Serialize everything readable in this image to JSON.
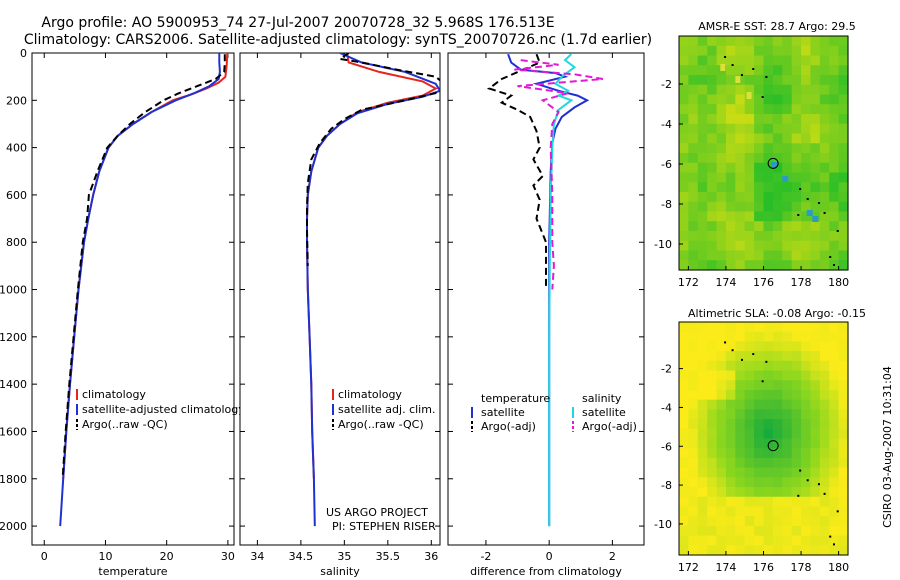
{
  "title": {
    "line1": "Argo profile: AO 5900953_74 27-Jul-2007 20070728_32 5.968S 176.513E",
    "line2": "Climatology: CARS2006. Satellite-adjusted climatology: synTS_20070726.nc (1.7d earlier)"
  },
  "footer": {
    "project": "US ARGO PROJECT",
    "pi": "PI: STEPHEN RISER",
    "stamp": "CSIRO 03-Aug-2007 10:31:04"
  },
  "colors": {
    "clim": "#e8251c",
    "sat": "#1e32d2",
    "argo": "#000000",
    "cyan": "#1ed9e0",
    "magenta": "#e01ad6"
  },
  "chart_data": [
    {
      "type": "line",
      "name": "temperature",
      "xlabel": "temperature",
      "ylabel": "",
      "xlim": [
        -2,
        31
      ],
      "ylim": [
        0,
        2080
      ],
      "y_reversed": true,
      "xticks": [
        0,
        10,
        20,
        30
      ],
      "xtick_labels": [
        "0",
        "10",
        "20",
        "30"
      ],
      "yticks": [
        0,
        200,
        400,
        600,
        800,
        1000,
        1200,
        1400,
        1600,
        1800,
        2000
      ],
      "ytick_labels": [
        "0",
        "200",
        "400",
        "600",
        "800",
        "1000",
        "1200",
        "1400",
        "1600",
        "1800",
        "2000"
      ],
      "legend": [
        "climatology",
        "satellite-adjusted climatology",
        "Argo(..raw -QC)"
      ],
      "series": [
        {
          "name": "climatology",
          "color": "clim",
          "dash": false,
          "points": [
            [
              29.9,
              0
            ],
            [
              29.8,
              50
            ],
            [
              29.6,
              100
            ],
            [
              28.5,
              125
            ],
            [
              26.5,
              150
            ],
            [
              24,
              175
            ],
            [
              21,
              200
            ],
            [
              17.5,
              250
            ],
            [
              14.5,
              300
            ],
            [
              12,
              350
            ],
            [
              10.5,
              400
            ],
            [
              9,
              500
            ],
            [
              8,
              600
            ],
            [
              7.2,
              700
            ],
            [
              6.5,
              800
            ],
            [
              5.6,
              1000
            ],
            [
              4.9,
              1200
            ],
            [
              4.2,
              1400
            ],
            [
              3.6,
              1600
            ],
            [
              3.1,
              1800
            ]
          ]
        },
        {
          "name": "satellite-adjusted climatology",
          "color": "sat",
          "dash": false,
          "points": [
            [
              28.6,
              0
            ],
            [
              28.6,
              40
            ],
            [
              28.7,
              80
            ],
            [
              28.5,
              110
            ],
            [
              27,
              140
            ],
            [
              24.5,
              170
            ],
            [
              21.5,
              200
            ],
            [
              17.5,
              250
            ],
            [
              14.5,
              300
            ],
            [
              12,
              350
            ],
            [
              10.5,
              400
            ],
            [
              9,
              500
            ],
            [
              8,
              600
            ],
            [
              7.2,
              700
            ],
            [
              6.5,
              800
            ],
            [
              5.6,
              1000
            ],
            [
              4.9,
              1200
            ],
            [
              4.2,
              1400
            ],
            [
              3.6,
              1600
            ],
            [
              3.1,
              1800
            ],
            [
              2.6,
              2000
            ]
          ]
        },
        {
          "name": "Argo(..raw -QC)",
          "color": "argo",
          "dash": true,
          "points": [
            [
              29.5,
              5
            ],
            [
              29.5,
              40
            ],
            [
              29.4,
              80
            ],
            [
              28,
              110
            ],
            [
              25,
              140
            ],
            [
              22,
              170
            ],
            [
              19.5,
              200
            ],
            [
              16.5,
              250
            ],
            [
              14,
              300
            ],
            [
              12,
              350
            ],
            [
              10.3,
              400
            ],
            [
              8.7,
              500
            ],
            [
              7.3,
              600
            ],
            [
              7,
              700
            ],
            [
              6.3,
              800
            ],
            [
              5.5,
              1000
            ],
            [
              4.8,
              1200
            ],
            [
              4.1,
              1400
            ],
            [
              3.5,
              1600
            ],
            [
              3,
              1800
            ]
          ]
        }
      ]
    },
    {
      "type": "line",
      "name": "salinity",
      "xlabel": "salinity",
      "xlim": [
        33.8,
        36.1
      ],
      "ylim": [
        0,
        2080
      ],
      "y_reversed": true,
      "xticks": [
        34,
        34.5,
        35,
        35.5,
        36
      ],
      "xtick_labels": [
        "34",
        "34.5",
        "35",
        "35.5",
        "36"
      ],
      "legend": [
        "climatology",
        "satellite adj. clim.",
        "Argo(..raw -QC)"
      ],
      "series": [
        {
          "name": "climatology",
          "color": "clim",
          "dash": false,
          "points": [
            [
              35.03,
              0
            ],
            [
              35.05,
              40
            ],
            [
              35.4,
              80
            ],
            [
              35.9,
              120
            ],
            [
              36.05,
              150
            ],
            [
              35.9,
              180
            ],
            [
              35.5,
              210
            ],
            [
              35.15,
              250
            ],
            [
              34.95,
              300
            ],
            [
              34.8,
              350
            ],
            [
              34.7,
              400
            ],
            [
              34.62,
              500
            ],
            [
              34.58,
              600
            ],
            [
              34.57,
              700
            ],
            [
              34.57,
              800
            ],
            [
              34.58,
              1000
            ],
            [
              34.6,
              1200
            ],
            [
              34.62,
              1400
            ],
            [
              34.63,
              1600
            ],
            [
              34.65,
              1800
            ]
          ]
        },
        {
          "name": "satellite adj. clim.",
          "color": "sat",
          "dash": false,
          "points": [
            [
              34.95,
              0
            ],
            [
              35.2,
              40
            ],
            [
              35.7,
              80
            ],
            [
              36.05,
              130
            ],
            [
              36.1,
              160
            ],
            [
              35.9,
              185
            ],
            [
              35.5,
              215
            ],
            [
              35.15,
              255
            ],
            [
              34.95,
              300
            ],
            [
              34.8,
              350
            ],
            [
              34.7,
              400
            ],
            [
              34.62,
              500
            ],
            [
              34.58,
              600
            ],
            [
              34.57,
              700
            ],
            [
              34.57,
              800
            ],
            [
              34.58,
              1000
            ],
            [
              34.6,
              1200
            ],
            [
              34.62,
              1400
            ],
            [
              34.63,
              1600
            ],
            [
              34.65,
              1800
            ],
            [
              34.66,
              2000
            ]
          ]
        },
        {
          "name": "Argo(..raw -QC)",
          "color": "argo",
          "dash": true,
          "points": [
            [
              35.05,
              0
            ],
            [
              34.95,
              25
            ],
            [
              35.2,
              40
            ],
            [
              35.6,
              70
            ],
            [
              36.05,
              100
            ],
            [
              36.15,
              130
            ],
            [
              36.1,
              165
            ],
            [
              35.7,
              200
            ],
            [
              35.2,
              240
            ],
            [
              35.0,
              280
            ],
            [
              34.85,
              320
            ],
            [
              34.72,
              380
            ],
            [
              34.62,
              450
            ],
            [
              34.58,
              550
            ],
            [
              34.57,
              650
            ],
            [
              34.57,
              750
            ],
            [
              34.58,
              900
            ]
          ]
        }
      ]
    },
    {
      "type": "line",
      "name": "difference",
      "xlabel": "difference from climatology",
      "xlim": [
        -3.2,
        3.0
      ],
      "ylim": [
        0,
        2080
      ],
      "y_reversed": true,
      "xticks": [
        -2,
        0,
        2
      ],
      "xtick_labels": [
        "-2",
        "0",
        "2"
      ],
      "legend_groups": [
        {
          "title": "temperature",
          "items": [
            "satellite",
            "Argo(-adj)"
          ]
        },
        {
          "title": "salinity",
          "items": [
            "satellite",
            "Argo(-adj)"
          ]
        }
      ],
      "series": [
        {
          "name": "temperature satellite",
          "color": "sat",
          "dash": false,
          "points": [
            [
              -1.3,
              5
            ],
            [
              -1.2,
              40
            ],
            [
              -0.9,
              70
            ],
            [
              0.2,
              85
            ],
            [
              0.5,
              100
            ],
            [
              -0.4,
              130
            ],
            [
              0.3,
              160
            ],
            [
              0.9,
              180
            ],
            [
              1.2,
              200
            ],
            [
              0.8,
              230
            ],
            [
              0.4,
              270
            ],
            [
              0.2,
              320
            ],
            [
              0.1,
              380
            ],
            [
              0.05,
              500
            ],
            [
              0,
              800
            ],
            [
              0,
              1200
            ],
            [
              0,
              1600
            ],
            [
              0,
              2000
            ]
          ]
        },
        {
          "name": "temperature Argo(-adj)",
          "color": "argo",
          "dash": true,
          "points": [
            [
              -0.4,
              5
            ],
            [
              -0.3,
              40
            ],
            [
              -1.5,
              110
            ],
            [
              -1.9,
              150
            ],
            [
              -1.2,
              180
            ],
            [
              -1.5,
              210
            ],
            [
              -1.0,
              240
            ],
            [
              -0.6,
              270
            ],
            [
              -0.4,
              330
            ],
            [
              -0.3,
              400
            ],
            [
              -0.5,
              450
            ],
            [
              -0.2,
              520
            ],
            [
              -0.5,
              560
            ],
            [
              -0.3,
              620
            ],
            [
              -0.4,
              700
            ],
            [
              -0.1,
              800
            ],
            [
              -0.1,
              1000
            ]
          ]
        },
        {
          "name": "salinity satellite",
          "color": "cyan",
          "dash": false,
          "points": [
            [
              0.7,
              5
            ],
            [
              0.5,
              30
            ],
            [
              0.8,
              60
            ],
            [
              0.4,
              100
            ],
            [
              0.2,
              130
            ],
            [
              0.6,
              160
            ],
            [
              0.3,
              180
            ],
            [
              0.7,
              200
            ],
            [
              0.3,
              240
            ],
            [
              0.15,
              300
            ],
            [
              0.1,
              400
            ],
            [
              0.05,
              600
            ],
            [
              0.02,
              900
            ],
            [
              0,
              1200
            ],
            [
              0,
              1600
            ],
            [
              0,
              2000
            ]
          ]
        },
        {
          "name": "salinity Argo(-adj)",
          "color": "magenta",
          "dash": true,
          "points": [
            [
              -0.9,
              30
            ],
            [
              0.3,
              50
            ],
            [
              -1.1,
              70
            ],
            [
              0.8,
              90
            ],
            [
              1.7,
              110
            ],
            [
              -1.0,
              140
            ],
            [
              0.6,
              170
            ],
            [
              -0.2,
              200
            ],
            [
              0.3,
              250
            ],
            [
              0.1,
              300
            ],
            [
              0.05,
              400
            ],
            [
              0.1,
              600
            ],
            [
              0.1,
              800
            ],
            [
              0.15,
              900
            ],
            [
              0.1,
              1000
            ]
          ]
        }
      ]
    },
    {
      "type": "heatmap",
      "name": "sst_map",
      "title": "AMSR-E SST: 28.7 Argo: 29.5",
      "xlim": [
        171.5,
        180.5
      ],
      "ylim": [
        -11.3,
        0.4
      ],
      "xticks": [
        172,
        174,
        176,
        178,
        180
      ],
      "xtick_labels": [
        "172",
        "174",
        "176",
        "178",
        "180"
      ],
      "yticks": [
        -2,
        -4,
        -6,
        -8,
        -10
      ],
      "ytick_labels": [
        "-2",
        "-4",
        "-6",
        "-8",
        "-10"
      ],
      "marker": {
        "lon": 176.513,
        "lat": -5.968
      }
    },
    {
      "type": "heatmap",
      "name": "sla_map",
      "title": "Altimetric SLA: -0.08 Argo: -0.15",
      "xlim": [
        171.5,
        180.5
      ],
      "ylim": [
        -11.6,
        0.4
      ],
      "xticks": [
        172,
        174,
        176,
        178,
        180
      ],
      "xtick_labels": [
        "172",
        "174",
        "176",
        "178",
        "180"
      ],
      "yticks": [
        -2,
        -4,
        -6,
        -8,
        -10
      ],
      "ytick_labels": [
        "-2",
        "-4",
        "-6",
        "-8",
        "-10"
      ],
      "marker": {
        "lon": 176.513,
        "lat": -5.968
      }
    }
  ]
}
